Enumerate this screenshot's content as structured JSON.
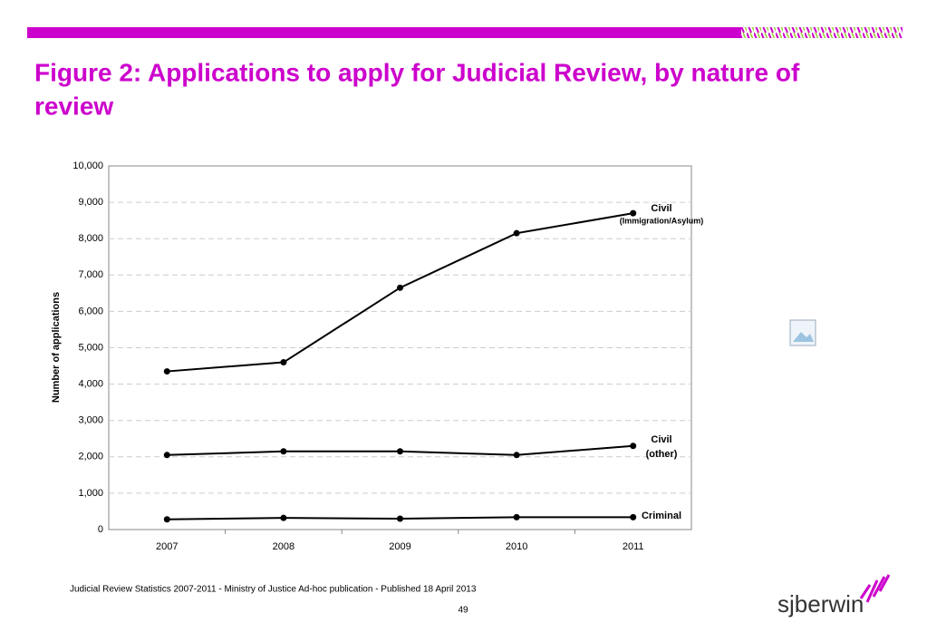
{
  "title": "Figure 2: Applications to apply for Judicial Review, by nature of review",
  "footnote": "Judicial Review Statistics 2007-2011 - Ministry of Justice Ad-hoc publication - Published 18 April 2013",
  "page_number": "49",
  "logo": "sjberwin",
  "chart_data": {
    "type": "line",
    "y_label": "Number of applications",
    "categories": [
      "2007",
      "2008",
      "2009",
      "2010",
      "2011"
    ],
    "series": [
      {
        "name": "Civil",
        "subname": "(Immigration/Asylum)",
        "color": "#000000",
        "values": [
          4350,
          4600,
          6650,
          8150,
          8700
        ]
      },
      {
        "name": "Civil",
        "subname": "(other)",
        "color": "#000000",
        "values": [
          2050,
          2150,
          2150,
          2050,
          2300
        ]
      },
      {
        "name": "Criminal",
        "color": "#000000",
        "values": [
          280,
          320,
          300,
          340,
          340
        ]
      }
    ],
    "ylim": [
      0,
      10000
    ],
    "yticks": [
      0,
      {
        "value": 1000,
        "label": "1,000"
      },
      {
        "value": 2000,
        "label": "2,000"
      },
      {
        "value": 3000,
        "label": "3,000"
      },
      {
        "value": 4000,
        "label": "4,000"
      },
      {
        "value": 5000,
        "label": "5,000"
      },
      {
        "value": 6000,
        "label": "6,000"
      },
      {
        "value": 7000,
        "label": "7,000"
      },
      {
        "value": 8000,
        "label": "8,000"
      },
      {
        "value": 9000,
        "label": "9,000"
      },
      {
        "value": 10000,
        "label": "10,000"
      }
    ],
    "grid": true
  }
}
